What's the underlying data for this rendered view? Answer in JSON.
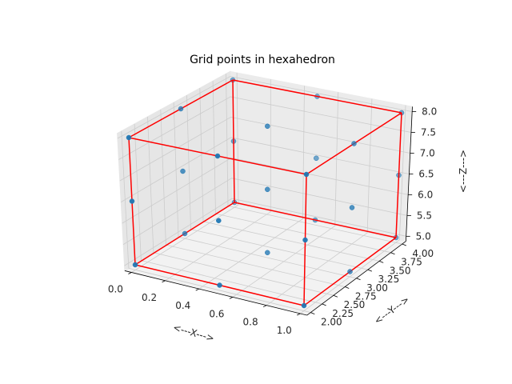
{
  "chart_data": {
    "type": "scatter3d",
    "title": "Grid points in hexahedron",
    "xlabel": "<---X--->",
    "ylabel": "<---Y--->",
    "zlabel": "<---Z--->",
    "xlim": [
      0,
      1
    ],
    "ylim": [
      2,
      4
    ],
    "zlim": [
      5,
      8
    ],
    "x_ticks": [
      "0.0",
      "0.2",
      "0.4",
      "0.6",
      "0.8",
      "1.0"
    ],
    "y_ticks": [
      "2.00",
      "2.25",
      "2.50",
      "2.75",
      "3.00",
      "3.25",
      "3.50",
      "3.75",
      "4.00"
    ],
    "z_ticks": [
      "5.0",
      "5.5",
      "6.0",
      "6.5",
      "7.0",
      "7.5",
      "8.0"
    ],
    "grid": true,
    "points_x": [
      0,
      0.5,
      1
    ],
    "points_y": [
      2,
      3,
      4
    ],
    "points_z": [
      5,
      6.5,
      8
    ],
    "point_color": "#1f77b4",
    "edge_color": "#ff0000",
    "hexahedron_edges": [
      [
        [
          0,
          2,
          5
        ],
        [
          1,
          2,
          5
        ]
      ],
      [
        [
          1,
          2,
          5
        ],
        [
          1,
          4,
          5
        ]
      ],
      [
        [
          1,
          4,
          5
        ],
        [
          0,
          4,
          5
        ]
      ],
      [
        [
          0,
          4,
          5
        ],
        [
          0,
          2,
          5
        ]
      ],
      [
        [
          0,
          2,
          8
        ],
        [
          1,
          2,
          8
        ]
      ],
      [
        [
          1,
          2,
          8
        ],
        [
          1,
          4,
          8
        ]
      ],
      [
        [
          1,
          4,
          8
        ],
        [
          0,
          4,
          8
        ]
      ],
      [
        [
          0,
          4,
          8
        ],
        [
          0,
          2,
          8
        ]
      ],
      [
        [
          0,
          2,
          5
        ],
        [
          0,
          2,
          8
        ]
      ],
      [
        [
          1,
          2,
          5
        ],
        [
          1,
          2,
          8
        ]
      ],
      [
        [
          1,
          4,
          5
        ],
        [
          1,
          4,
          8
        ]
      ],
      [
        [
          0,
          4,
          5
        ],
        [
          0,
          4,
          8
        ]
      ]
    ]
  }
}
